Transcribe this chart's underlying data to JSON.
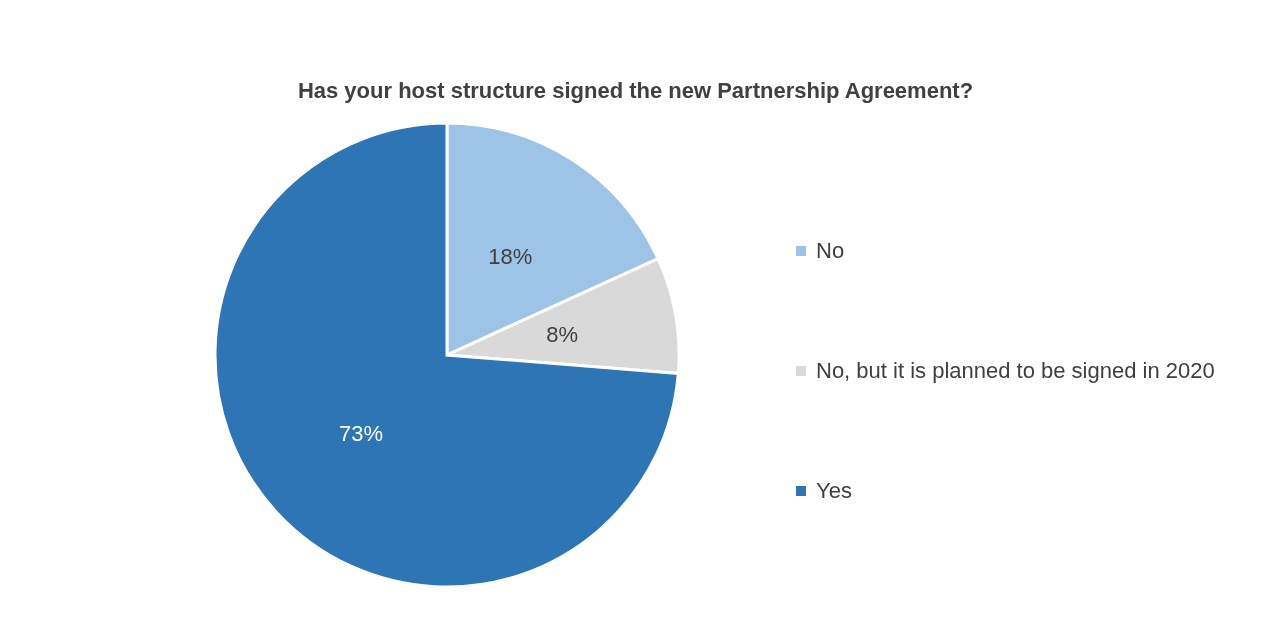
{
  "chart_data": {
    "type": "pie",
    "title": "Has your host structure signed the new Partnership Agreement?",
    "categories": [
      "No",
      "No, but it is planned to be signed in 2020",
      "Yes"
    ],
    "values": [
      18,
      8,
      73
    ],
    "colors": [
      "#9dc3e6",
      "#d9d9d9",
      "#2e75b6"
    ],
    "value_labels": [
      "18%",
      "8%",
      "73%"
    ],
    "legend": "right"
  }
}
